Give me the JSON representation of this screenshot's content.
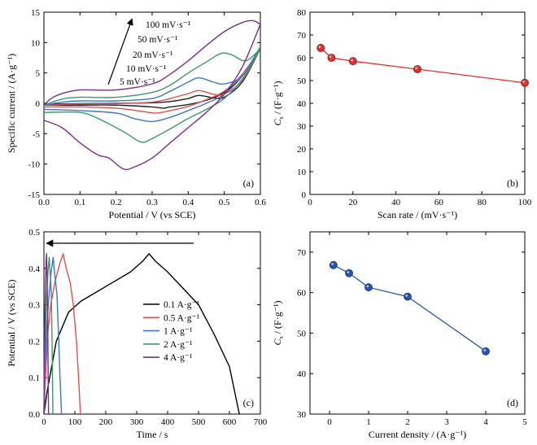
{
  "chart_data": [
    {
      "panel": "(a)",
      "type": "line",
      "xlabel": "Potential / V (vs SCE)",
      "ylabel": "Specific current / (A·g⁻¹)",
      "xlim": [
        0,
        0.6
      ],
      "ylim": [
        -15,
        15
      ],
      "xticks": [
        0.0,
        0.1,
        0.2,
        0.3,
        0.4,
        0.5,
        0.6
      ],
      "xtick_labels": [
        "0.0",
        "0.1",
        "0.2",
        "0.3",
        "0.4",
        "0.5",
        "0.6"
      ],
      "yticks": [
        -15,
        -10,
        -5,
        0,
        5,
        10,
        15
      ],
      "ytick_labels": [
        "-15",
        "-10",
        "-5",
        "0",
        "5",
        "10",
        "15"
      ],
      "arrow_labels": [
        "100 mV·s⁻¹",
        "50 mV·s⁻¹",
        "20 mV·s⁻¹",
        "10 mV·s⁻¹",
        "5 mV·s⁻¹"
      ],
      "series": [
        {
          "color": "#222222",
          "anodic": [
            [
              0,
              -0.2
            ],
            [
              0.05,
              -0.1
            ],
            [
              0.1,
              -0.05
            ],
            [
              0.2,
              0
            ],
            [
              0.3,
              0.1
            ],
            [
              0.35,
              0.3
            ],
            [
              0.4,
              0.8
            ],
            [
              0.43,
              1.3
            ],
            [
              0.47,
              0.9
            ],
            [
              0.5,
              1.0
            ],
            [
              0.55,
              3.5
            ],
            [
              0.6,
              9.0
            ]
          ],
          "cathodic": [
            [
              0.6,
              9.0
            ],
            [
              0.55,
              4.5
            ],
            [
              0.5,
              1.8
            ],
            [
              0.45,
              0.5
            ],
            [
              0.4,
              -0.2
            ],
            [
              0.35,
              -0.6
            ],
            [
              0.33,
              -0.8
            ],
            [
              0.3,
              -0.6
            ],
            [
              0.2,
              -0.3
            ],
            [
              0.1,
              -0.3
            ],
            [
              0,
              -0.3
            ]
          ]
        },
        {
          "color": "#e05050",
          "anodic": [
            [
              0,
              -0.3
            ],
            [
              0.05,
              -0.2
            ],
            [
              0.1,
              -0.1
            ],
            [
              0.2,
              -0.05
            ],
            [
              0.3,
              0.2
            ],
            [
              0.35,
              0.8
            ],
            [
              0.4,
              1.6
            ],
            [
              0.43,
              2.1
            ],
            [
              0.47,
              1.5
            ],
            [
              0.5,
              1.5
            ],
            [
              0.55,
              3.8
            ],
            [
              0.6,
              9.0
            ]
          ],
          "cathodic": [
            [
              0.6,
              9.0
            ],
            [
              0.55,
              4.8
            ],
            [
              0.5,
              2.0
            ],
            [
              0.45,
              0.6
            ],
            [
              0.4,
              -0.5
            ],
            [
              0.35,
              -1.2
            ],
            [
              0.31,
              -1.6
            ],
            [
              0.27,
              -1.3
            ],
            [
              0.2,
              -0.8
            ],
            [
              0.1,
              -0.6
            ],
            [
              0,
              -0.6
            ]
          ]
        },
        {
          "color": "#3a78c0",
          "anodic": [
            [
              0,
              -0.3
            ],
            [
              0.05,
              0.2
            ],
            [
              0.1,
              0.4
            ],
            [
              0.2,
              0.4
            ],
            [
              0.3,
              0.8
            ],
            [
              0.35,
              2.0
            ],
            [
              0.4,
              3.5
            ],
            [
              0.43,
              4.2
            ],
            [
              0.47,
              3.5
            ],
            [
              0.5,
              3.2
            ],
            [
              0.55,
              4.5
            ],
            [
              0.6,
              9.3
            ]
          ],
          "cathodic": [
            [
              0.6,
              9.3
            ],
            [
              0.55,
              4.5
            ],
            [
              0.5,
              1.5
            ],
            [
              0.45,
              0
            ],
            [
              0.4,
              -1.2
            ],
            [
              0.35,
              -2.3
            ],
            [
              0.3,
              -3.0
            ],
            [
              0.25,
              -2.5
            ],
            [
              0.2,
              -1.6
            ],
            [
              0.1,
              -1.2
            ],
            [
              0,
              -1.0
            ]
          ]
        },
        {
          "color": "#3a9a6a",
          "anodic": [
            [
              0,
              -0.3
            ],
            [
              0.05,
              0.7
            ],
            [
              0.1,
              1.0
            ],
            [
              0.2,
              1.0
            ],
            [
              0.3,
              1.8
            ],
            [
              0.35,
              3.0
            ],
            [
              0.4,
              5.0
            ],
            [
              0.45,
              6.8
            ],
            [
              0.49,
              8.2
            ],
            [
              0.52,
              8.0
            ],
            [
              0.56,
              7.0
            ],
            [
              0.6,
              9.0
            ]
          ],
          "cathodic": [
            [
              0.6,
              9.0
            ],
            [
              0.55,
              4.0
            ],
            [
              0.5,
              0.8
            ],
            [
              0.45,
              -1.0
            ],
            [
              0.4,
              -2.5
            ],
            [
              0.35,
              -4.2
            ],
            [
              0.3,
              -5.8
            ],
            [
              0.27,
              -6.4
            ],
            [
              0.23,
              -5.0
            ],
            [
              0.2,
              -4.0
            ],
            [
              0.15,
              -2.5
            ],
            [
              0.1,
              -1.5
            ],
            [
              0,
              -1.5
            ]
          ]
        },
        {
          "color": "#7a2e8e",
          "anodic": [
            [
              0,
              -0.3
            ],
            [
              0.02,
              0.8
            ],
            [
              0.05,
              1.6
            ],
            [
              0.1,
              2.2
            ],
            [
              0.2,
              2.2
            ],
            [
              0.3,
              3.2
            ],
            [
              0.35,
              4.8
            ],
            [
              0.4,
              7.0
            ],
            [
              0.45,
              9.5
            ],
            [
              0.5,
              11.8
            ],
            [
              0.55,
              13.3
            ],
            [
              0.58,
              13.6
            ],
            [
              0.6,
              13.0
            ]
          ],
          "cathodic": [
            [
              0.6,
              13.0
            ],
            [
              0.55,
              6.0
            ],
            [
              0.5,
              1.5
            ],
            [
              0.45,
              -1.5
            ],
            [
              0.4,
              -4.0
            ],
            [
              0.35,
              -6.5
            ],
            [
              0.3,
              -9.0
            ],
            [
              0.25,
              -10.5
            ],
            [
              0.22,
              -10.8
            ],
            [
              0.18,
              -9.0
            ],
            [
              0.15,
              -8.5
            ],
            [
              0.1,
              -6.5
            ],
            [
              0.05,
              -4.0
            ],
            [
              0,
              -2.8
            ]
          ]
        }
      ]
    },
    {
      "panel": "(b)",
      "type": "scatter",
      "xlabel": "Scan rate / (mV·s⁻¹)",
      "ylabel": "/ (F·g⁻¹)",
      "xlim": [
        0,
        100
      ],
      "ylim": [
        0,
        80
      ],
      "xticks": [
        0,
        20,
        40,
        60,
        80,
        100
      ],
      "xtick_labels": [
        "0",
        "20",
        "40",
        "60",
        "80",
        "100"
      ],
      "yticks": [
        0,
        10,
        20,
        30,
        40,
        50,
        60,
        70,
        80
      ],
      "ytick_labels": [
        "0",
        "10",
        "20",
        "30",
        "40",
        "50",
        "60",
        "70",
        "80"
      ],
      "x": [
        5,
        10,
        20,
        50,
        100
      ],
      "y": [
        64.3,
        60.0,
        58.5,
        55.0,
        49.0
      ],
      "color": "#e03030"
    },
    {
      "panel": "(c)",
      "type": "line",
      "xlabel": "Time / s",
      "ylabel": "Potential / V (vs SCE)",
      "xlim": [
        0,
        700
      ],
      "ylim": [
        0,
        0.5
      ],
      "xticks": [
        0,
        100,
        200,
        300,
        400,
        500,
        600,
        700
      ],
      "xtick_labels": [
        "0",
        "100",
        "200",
        "300",
        "400",
        "500",
        "600",
        "700"
      ],
      "yticks": [
        0,
        0.1,
        0.2,
        0.3,
        0.4,
        0.5
      ],
      "ytick_labels": [
        "0.0",
        "0.1",
        "0.2",
        "0.3",
        "0.4",
        "0.5"
      ],
      "series": [
        {
          "name": "0.1 A·g⁻¹",
          "color": "#000000",
          "points": [
            [
              0,
              0
            ],
            [
              10,
              0.06
            ],
            [
              40,
              0.2
            ],
            [
              80,
              0.28
            ],
            [
              120,
              0.31
            ],
            [
              200,
              0.35
            ],
            [
              280,
              0.39
            ],
            [
              320,
              0.42
            ],
            [
              340,
              0.44
            ],
            [
              360,
              0.42
            ],
            [
              400,
              0.39
            ],
            [
              500,
              0.3
            ],
            [
              550,
              0.22
            ],
            [
              600,
              0.13
            ],
            [
              632,
              0
            ]
          ]
        },
        {
          "name": "0.5 A·g⁻¹",
          "color": "#e05050",
          "points": [
            [
              0,
              0
            ],
            [
              5,
              0.1
            ],
            [
              12,
              0.22
            ],
            [
              22,
              0.3
            ],
            [
              35,
              0.36
            ],
            [
              50,
              0.41
            ],
            [
              62,
              0.44
            ],
            [
              72,
              0.4
            ],
            [
              85,
              0.36
            ],
            [
              95,
              0.3
            ],
            [
              105,
              0.2
            ],
            [
              112,
              0.1
            ],
            [
              118,
              0
            ]
          ]
        },
        {
          "name": "1 A·g⁻¹",
          "color": "#3a78c0",
          "points": [
            [
              0,
              0
            ],
            [
              3,
              0.1
            ],
            [
              8,
              0.22
            ],
            [
              15,
              0.31
            ],
            [
              22,
              0.38
            ],
            [
              30,
              0.43
            ],
            [
              34,
              0.39
            ],
            [
              42,
              0.33
            ],
            [
              48,
              0.2
            ],
            [
              52,
              0.1
            ],
            [
              57,
              0
            ]
          ]
        },
        {
          "name": "2 A·g⁻¹",
          "color": "#3a9a6a",
          "points": [
            [
              0,
              0
            ],
            [
              2,
              0.1
            ],
            [
              5,
              0.22
            ],
            [
              9,
              0.33
            ],
            [
              14,
              0.4
            ],
            [
              17,
              0.43
            ],
            [
              20,
              0.39
            ],
            [
              24,
              0.33
            ],
            [
              27,
              0.15
            ],
            [
              29,
              0
            ]
          ]
        },
        {
          "name": "4 A·g⁻¹",
          "color": "#7a2e8e",
          "points": [
            [
              0,
              0
            ],
            [
              1,
              0.12
            ],
            [
              3,
              0.26
            ],
            [
              5,
              0.35
            ],
            [
              7,
              0.42
            ],
            [
              8.5,
              0.44
            ],
            [
              10,
              0.38
            ],
            [
              12,
              0.28
            ],
            [
              13.5,
              0.12
            ],
            [
              15,
              0
            ]
          ]
        }
      ]
    },
    {
      "panel": "(d)",
      "type": "line",
      "xlabel": "Current density / (A·g⁻¹)",
      "ylabel": "/ (F·g⁻¹)",
      "xlim": [
        -0.5,
        5
      ],
      "ylim": [
        30,
        75
      ],
      "xticks": [
        0,
        1,
        2,
        3,
        4,
        5
      ],
      "xtick_labels": [
        "0",
        "1",
        "2",
        "3",
        "4",
        "5"
      ],
      "yticks": [
        30,
        40,
        50,
        60,
        70
      ],
      "ytick_labels": [
        "30",
        "40",
        "50",
        "60",
        "70"
      ],
      "x": [
        0.1,
        0.5,
        1,
        2,
        4
      ],
      "y": [
        66.8,
        64.8,
        61.3,
        59.0,
        45.5
      ],
      "color": "#2a55a8"
    }
  ]
}
